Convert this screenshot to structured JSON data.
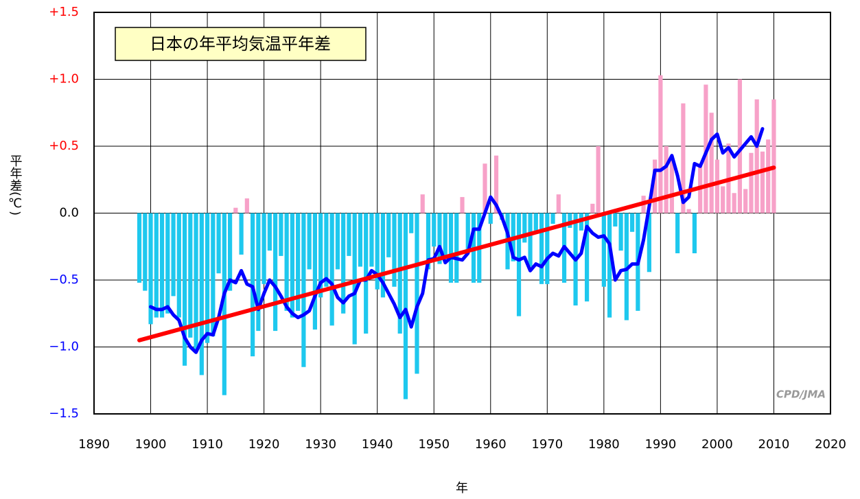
{
  "chart_data": {
    "type": "bar",
    "annotation": "日本の年平均気温平年差",
    "watermark": "CPD/JMA",
    "x_label": "年",
    "y_label": "平年差(℃)",
    "xlim": [
      1890,
      2020
    ],
    "xticks": [
      1890,
      1900,
      1910,
      1920,
      1930,
      1940,
      1950,
      1960,
      1970,
      1980,
      1990,
      2000,
      2010,
      2020
    ],
    "ylim": [
      -1.5,
      1.5
    ],
    "yticks": [
      {
        "value": -1.5,
        "label": "−1.5"
      },
      {
        "value": -1.0,
        "label": "−1.0"
      },
      {
        "value": -0.5,
        "label": "−0.5"
      },
      {
        "value": 0,
        "label": "0.0"
      },
      {
        "value": 0.5,
        "label": "+0.5"
      },
      {
        "value": 1.0,
        "label": "+1.0"
      },
      {
        "value": 1.5,
        "label": "+1.5"
      }
    ],
    "ytick_colors": {
      "positive": "#ff0000",
      "zero": "#000000",
      "negative": "#0000ff"
    },
    "grid": true,
    "series": [
      {
        "type": "bar",
        "color": "#f7a1c8",
        "negative_color": "#1ec8ee",
        "x": [
          1898,
          1899,
          1900,
          1901,
          1902,
          1903,
          1904,
          1905,
          1906,
          1907,
          1908,
          1909,
          1910,
          1911,
          1912,
          1913,
          1914,
          1915,
          1916,
          1917,
          1918,
          1919,
          1920,
          1921,
          1922,
          1923,
          1924,
          1925,
          1926,
          1927,
          1928,
          1929,
          1930,
          1931,
          1932,
          1933,
          1934,
          1935,
          1936,
          1937,
          1938,
          1939,
          1940,
          1941,
          1942,
          1943,
          1944,
          1945,
          1946,
          1947,
          1948,
          1949,
          1950,
          1951,
          1952,
          1953,
          1954,
          1955,
          1956,
          1957,
          1958,
          1959,
          1960,
          1961,
          1962,
          1963,
          1964,
          1965,
          1966,
          1967,
          1968,
          1969,
          1970,
          1971,
          1972,
          1973,
          1974,
          1975,
          1976,
          1977,
          1978,
          1979,
          1980,
          1981,
          1982,
          1983,
          1984,
          1985,
          1986,
          1987,
          1988,
          1989,
          1990,
          1991,
          1992,
          1993,
          1994,
          1995,
          1996,
          1997,
          1998,
          1999,
          2000,
          2001,
          2002,
          2003,
          2004,
          2005,
          2006,
          2007,
          2008,
          2009,
          2010
        ],
        "values": [
          -0.52,
          -0.58,
          -0.83,
          -0.78,
          -0.78,
          -0.75,
          -0.62,
          -0.78,
          -1.14,
          -0.93,
          -1.02,
          -1.21,
          -0.97,
          -0.92,
          -0.45,
          -1.36,
          -0.58,
          0.04,
          -0.31,
          0.11,
          -1.07,
          -0.88,
          -0.53,
          -0.28,
          -0.88,
          -0.32,
          -0.73,
          -0.78,
          -0.73,
          -1.15,
          -0.42,
          -0.87,
          -0.63,
          -0.55,
          -0.84,
          -0.42,
          -0.75,
          -0.32,
          -0.98,
          -0.4,
          -0.9,
          -0.4,
          -0.57,
          -0.63,
          -0.33,
          -0.55,
          -0.9,
          -1.39,
          -0.15,
          -1.2,
          0.14,
          -0.42,
          -0.25,
          -0.38,
          -0.33,
          -0.52,
          -0.52,
          0.12,
          -0.28,
          -0.52,
          -0.52,
          0.37,
          -0.08,
          0.43,
          -0.05,
          -0.42,
          -0.36,
          -0.77,
          -0.22,
          -0.4,
          -0.13,
          -0.53,
          -0.53,
          -0.08,
          0.14,
          -0.52,
          -0.11,
          -0.69,
          -0.13,
          -0.66,
          0.07,
          0.5,
          -0.55,
          -0.78,
          -0.1,
          -0.28,
          -0.8,
          -0.14,
          -0.73,
          0.13,
          -0.44,
          0.4,
          1.03,
          0.5,
          0.4,
          -0.3,
          0.82,
          0.03,
          -0.3,
          0.37,
          0.96,
          0.75,
          0.4,
          0.2,
          0.52,
          0.15,
          1.0,
          0.18,
          0.45,
          0.85,
          0.46,
          0.55,
          0.85
        ]
      },
      {
        "type": "line",
        "color": "#0000ff",
        "width": 5,
        "x": [
          1900,
          1901,
          1902,
          1903,
          1904,
          1905,
          1906,
          1907,
          1908,
          1909,
          1910,
          1911,
          1912,
          1913,
          1914,
          1915,
          1916,
          1917,
          1918,
          1919,
          1920,
          1921,
          1922,
          1923,
          1924,
          1925,
          1926,
          1927,
          1928,
          1929,
          1930,
          1931,
          1932,
          1933,
          1934,
          1935,
          1936,
          1937,
          1938,
          1939,
          1940,
          1941,
          1942,
          1943,
          1944,
          1945,
          1946,
          1947,
          1948,
          1949,
          1950,
          1951,
          1952,
          1953,
          1954,
          1955,
          1956,
          1957,
          1958,
          1959,
          1960,
          1961,
          1962,
          1963,
          1964,
          1965,
          1966,
          1967,
          1968,
          1969,
          1970,
          1971,
          1972,
          1973,
          1974,
          1975,
          1976,
          1977,
          1978,
          1979,
          1980,
          1981,
          1982,
          1983,
          1984,
          1985,
          1986,
          1987,
          1988,
          1989,
          1990,
          1991,
          1992,
          1993,
          1994,
          1995,
          1996,
          1997,
          1998,
          1999,
          2000,
          2001,
          2002,
          2003,
          2004,
          2005,
          2006,
          2007,
          2008
        ],
        "values": [
          -0.7,
          -0.72,
          -0.72,
          -0.7,
          -0.76,
          -0.8,
          -0.93,
          -1.0,
          -1.04,
          -0.95,
          -0.9,
          -0.91,
          -0.78,
          -0.6,
          -0.5,
          -0.52,
          -0.43,
          -0.53,
          -0.55,
          -0.72,
          -0.6,
          -0.5,
          -0.55,
          -0.62,
          -0.7,
          -0.75,
          -0.78,
          -0.76,
          -0.73,
          -0.62,
          -0.52,
          -0.49,
          -0.53,
          -0.63,
          -0.67,
          -0.62,
          -0.6,
          -0.5,
          -0.5,
          -0.43,
          -0.46,
          -0.52,
          -0.6,
          -0.68,
          -0.78,
          -0.72,
          -0.85,
          -0.7,
          -0.6,
          -0.35,
          -0.34,
          -0.25,
          -0.37,
          -0.33,
          -0.34,
          -0.35,
          -0.3,
          -0.12,
          -0.12,
          0.0,
          0.12,
          0.06,
          -0.03,
          -0.15,
          -0.33,
          -0.35,
          -0.33,
          -0.43,
          -0.38,
          -0.4,
          -0.34,
          -0.3,
          -0.32,
          -0.25,
          -0.3,
          -0.35,
          -0.3,
          -0.1,
          -0.15,
          -0.18,
          -0.17,
          -0.23,
          -0.5,
          -0.43,
          -0.42,
          -0.38,
          -0.38,
          -0.2,
          0.05,
          0.32,
          0.32,
          0.35,
          0.43,
          0.28,
          0.08,
          0.12,
          0.37,
          0.35,
          0.45,
          0.55,
          0.59,
          0.45,
          0.49,
          0.42,
          0.47,
          0.52,
          0.57,
          0.5,
          0.63
        ]
      },
      {
        "type": "line",
        "color": "#ff0000",
        "width": 6,
        "x": [
          1898,
          2010
        ],
        "values": [
          -0.95,
          0.34
        ]
      }
    ]
  }
}
